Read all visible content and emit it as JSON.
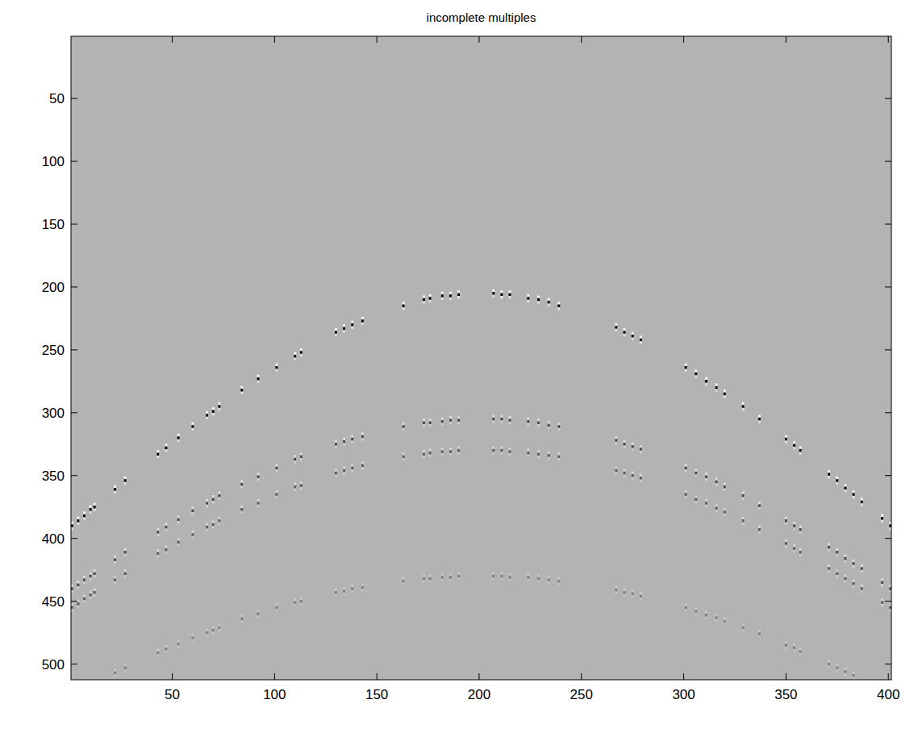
{
  "chart_data": {
    "type": "scatter",
    "title": "incomplete multiples",
    "marker": "wavelet",
    "tick_labels": true,
    "xlim": [
      0.5,
      401.5
    ],
    "ylim": [
      512.5,
      0.5
    ],
    "xticks": [
      50,
      100,
      150,
      200,
      250,
      300,
      350,
      400
    ],
    "yticks": [
      50,
      100,
      150,
      200,
      250,
      300,
      350,
      400,
      450,
      500
    ],
    "x": [
      1,
      4,
      7,
      10,
      12,
      22,
      27,
      43,
      47,
      53,
      60,
      67,
      70,
      73,
      84,
      92,
      101,
      110,
      113,
      130,
      134,
      138,
      143,
      163,
      173,
      176,
      182,
      186,
      190,
      207,
      211,
      215,
      224,
      229,
      234,
      239,
      267,
      271,
      275,
      279,
      301,
      306,
      311,
      316,
      320,
      329,
      337,
      350,
      354,
      357,
      371,
      375,
      379,
      383,
      387,
      397,
      401
    ],
    "series": [
      {
        "color": "#000000",
        "amplitude": 1.0,
        "values": [
          390,
          386,
          382,
          377,
          375,
          361,
          354,
          333,
          328,
          320,
          311,
          302,
          299,
          295,
          282,
          273,
          264,
          255,
          252,
          236,
          233,
          230,
          227,
          215,
          210,
          209,
          207,
          207,
          206,
          205,
          206,
          206,
          209,
          210,
          212,
          215,
          232,
          236,
          239,
          242,
          264,
          269,
          275,
          280,
          285,
          295,
          305,
          321,
          326,
          330,
          349,
          354,
          360,
          365,
          371,
          384,
          390
        ]
      },
      {
        "color": "#000000",
        "amplitude": 0.6,
        "values": [
          440,
          437,
          433,
          430,
          428,
          417,
          411,
          395,
          391,
          385,
          378,
          372,
          369,
          366,
          357,
          351,
          344,
          337,
          335,
          325,
          323,
          321,
          319,
          311,
          308,
          308,
          307,
          306,
          306,
          305,
          305,
          306,
          307,
          308,
          310,
          311,
          322,
          325,
          327,
          329,
          344,
          348,
          351,
          355,
          359,
          366,
          374,
          386,
          390,
          393,
          407,
          411,
          416,
          420,
          424,
          435,
          440
        ]
      },
      {
        "color": "#000000",
        "amplitude": 0.5,
        "values": [
          455,
          452,
          448,
          445,
          443,
          433,
          428,
          412,
          409,
          403,
          397,
          391,
          389,
          386,
          377,
          372,
          365,
          359,
          358,
          348,
          346,
          344,
          342,
          335,
          333,
          332,
          331,
          331,
          330,
          330,
          330,
          331,
          332,
          333,
          334,
          335,
          346,
          348,
          350,
          352,
          365,
          369,
          372,
          376,
          379,
          386,
          393,
          404,
          408,
          411,
          424,
          428,
          432,
          436,
          440,
          451,
          455
        ]
      },
      {
        "color": "#000000",
        "amplitude": 0.3,
        "values": [
          null,
          null,
          null,
          null,
          null,
          507,
          503,
          491,
          488,
          484,
          479,
          475,
          473,
          471,
          464,
          460,
          455,
          451,
          450,
          443,
          442,
          440,
          439,
          434,
          432,
          432,
          431,
          431,
          430,
          430,
          430,
          431,
          431,
          432,
          433,
          434,
          441,
          443,
          444,
          446,
          455,
          458,
          461,
          463,
          466,
          471,
          476,
          485,
          487,
          490,
          500,
          503,
          506,
          509,
          null,
          null,
          null
        ]
      }
    ]
  }
}
